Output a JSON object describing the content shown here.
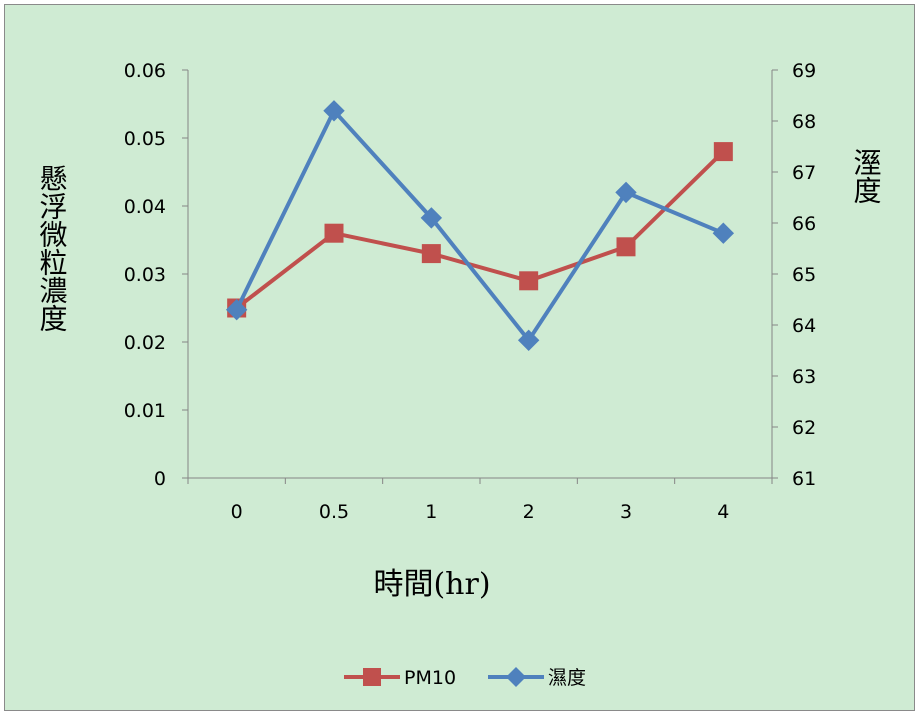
{
  "chart_data": {
    "type": "line",
    "categories": [
      "0",
      "0.5",
      "1",
      "2",
      "3",
      "4"
    ],
    "xlabel": "時間(hr)",
    "ylabel_left": "懸浮微粒濃度",
    "ylabel_right": "溼度",
    "y_left": {
      "range": [
        0,
        0.06
      ],
      "ticks": [
        0,
        0.01,
        0.02,
        0.03,
        0.04,
        0.05,
        0.06
      ],
      "tick_labels": [
        "0",
        "0.01",
        "0.02",
        "0.03",
        "0.04",
        "0.05",
        "0.06"
      ]
    },
    "y_right": {
      "range": [
        61,
        69
      ],
      "ticks": [
        61,
        62,
        63,
        64,
        65,
        66,
        67,
        68,
        69
      ],
      "tick_labels": [
        "61",
        "62",
        "63",
        "64",
        "65",
        "66",
        "67",
        "68",
        "69"
      ]
    },
    "grid": false,
    "legend": "bottom",
    "series": [
      {
        "name": "PM10",
        "axis": "left",
        "marker": "square",
        "color": "#C0504D",
        "values": [
          0.025,
          0.036,
          0.033,
          0.029,
          0.034,
          0.048
        ]
      },
      {
        "name": "濕度",
        "axis": "right",
        "marker": "diamond",
        "color": "#4F81BD",
        "values": [
          64.3,
          68.2,
          66.1,
          63.7,
          66.6,
          65.8
        ]
      }
    ]
  },
  "colors": {
    "background": "#CFEBD3",
    "axis": "#868686",
    "text": "#000000"
  }
}
